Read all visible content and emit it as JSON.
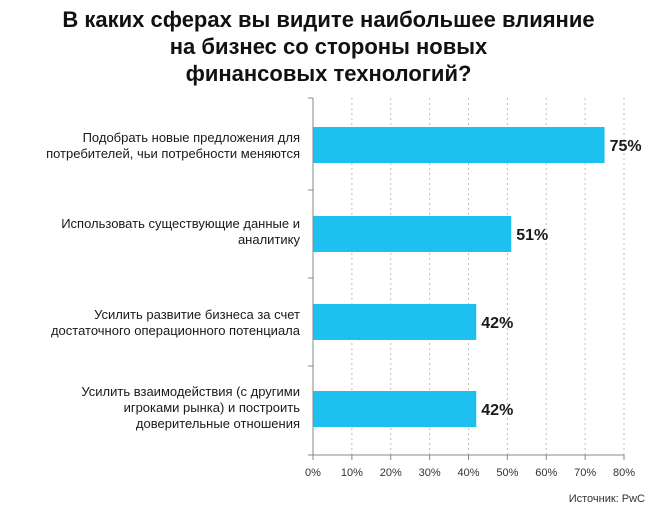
{
  "chart_data": {
    "type": "bar",
    "orientation": "horizontal",
    "title_lines": [
      "В каких сферах вы видите наибольшее влияние",
      "на бизнес со стороны новых",
      "финансовых технологий?"
    ],
    "categories": [
      [
        "Подобрать новые предложения для",
        "потребителей, чьи потребности меняются"
      ],
      [
        "Использовать существующие данные и",
        "аналитику"
      ],
      [
        "Усилить развитие бизнеса за счет",
        "достаточного операционного потенциала"
      ],
      [
        "Усилить взаимодействия (с другими",
        "игроками рынка) и построить",
        "доверительные отношения"
      ]
    ],
    "values": [
      75,
      51,
      42,
      42
    ],
    "value_labels": [
      "75%",
      "51%",
      "42%",
      "42%"
    ],
    "xlim": [
      0,
      80
    ],
    "x_ticks": [
      "0%",
      "10%",
      "20%",
      "30%",
      "40%",
      "50%",
      "60%",
      "70%",
      "80%"
    ],
    "grid": "vertical dashed",
    "bar_color": "#1ec0ef"
  },
  "source": "Источник: PwC"
}
